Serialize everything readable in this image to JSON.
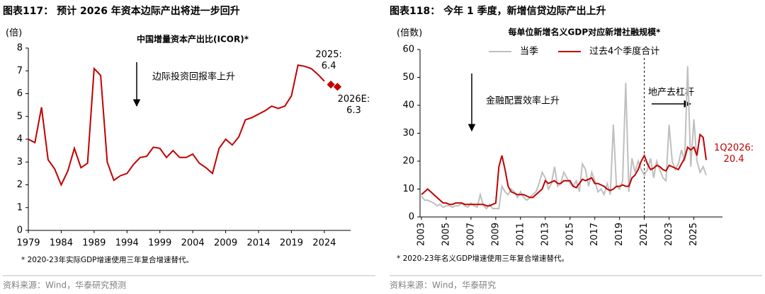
{
  "chart_data": [
    {
      "type": "line",
      "heading": "图表117：  预计 2026 年资本边际产出将进一步回升",
      "title": "中国增量资本产出比(ICOR)*",
      "ylabel": "(倍)",
      "annotations": [
        "边际投资回报率上升"
      ],
      "note": "* 2020-23年实际GDP增速使用三年复合增速替代。",
      "source": "资料来源：Wind，华泰研究预测",
      "xlim": [
        1979,
        2028
      ],
      "xticks": [
        1979,
        1984,
        1989,
        1994,
        1999,
        2004,
        2009,
        2014,
        2019,
        2024
      ],
      "ylim": [
        0,
        8
      ],
      "yticks": [
        0,
        1,
        2,
        3,
        4,
        5,
        6,
        7,
        8
      ],
      "series": [
        {
          "color": "#c00000",
          "x": [
            1979,
            1980,
            1981,
            1982,
            1983,
            1984,
            1985,
            1986,
            1987,
            1988,
            1989,
            1990,
            1991,
            1992,
            1993,
            1994,
            1995,
            1996,
            1997,
            1998,
            1999,
            2000,
            2001,
            2002,
            2003,
            2004,
            2005,
            2006,
            2007,
            2008,
            2009,
            2010,
            2011,
            2012,
            2013,
            2014,
            2015,
            2016,
            2017,
            2018,
            2019,
            2020,
            2021,
            2022,
            2023,
            2024
          ],
          "values": [
            4.0,
            3.85,
            5.4,
            3.1,
            2.7,
            2.0,
            2.6,
            3.6,
            2.75,
            2.95,
            7.1,
            6.8,
            3.0,
            2.2,
            2.4,
            2.5,
            2.9,
            3.2,
            3.25,
            3.65,
            3.6,
            3.2,
            3.5,
            3.2,
            3.2,
            3.35,
            2.95,
            2.75,
            2.5,
            3.6,
            4.0,
            3.75,
            4.1,
            4.85,
            4.95,
            5.1,
            5.25,
            5.45,
            5.35,
            5.45,
            5.9,
            7.25,
            7.2,
            7.1,
            6.85,
            6.55
          ]
        },
        {
          "color": "#c00000",
          "marker": "diamond",
          "x": [
            2025,
            2026
          ],
          "values": [
            6.4,
            6.3
          ],
          "value_labels": [
            "2025:\n6.4",
            "2026E:\n6.3"
          ]
        }
      ]
    },
    {
      "type": "line",
      "heading": "图表118：  今年 1 季度，新增信贷边际产出上升",
      "title": "每单位新增名义GDP对应新增社融规模*",
      "ylabel": "(倍数)",
      "annotations": [
        "金融配置效率上升",
        "地产去杠杆"
      ],
      "note": "* 2020-23年名义GDP增速使用三年复合增速替代。",
      "source": "资料来源：Wind，华泰研究",
      "legend": "top",
      "ylim": [
        0,
        60
      ],
      "yticks": [
        0,
        10,
        20,
        30,
        40,
        50,
        60
      ],
      "categories": [
        "2003",
        null,
        null,
        null,
        null,
        null,
        null,
        null,
        "2005",
        null,
        null,
        null,
        null,
        null,
        null,
        null,
        "2007",
        null,
        null,
        null,
        null,
        null,
        null,
        null,
        "2009",
        null,
        null,
        null,
        null,
        null,
        null,
        null,
        "2011",
        null,
        null,
        null,
        null,
        null,
        null,
        null,
        "2013",
        null,
        null,
        null,
        null,
        null,
        null,
        null,
        "2015",
        null,
        null,
        null,
        null,
        null,
        null,
        null,
        "2017",
        null,
        null,
        null,
        null,
        null,
        null,
        null,
        "2019",
        null,
        null,
        null,
        null,
        null,
        null,
        null,
        "2021",
        null,
        null,
        null,
        null,
        null,
        null,
        null,
        "2023",
        null,
        null,
        null,
        null,
        null,
        null,
        null,
        "2025",
        null,
        null,
        null,
        null
      ],
      "series": [
        {
          "name": "当季",
          "color": "#bfbfbf",
          "values": [
            7.5,
            6,
            6,
            5.5,
            5,
            4,
            4.5,
            3.5,
            4,
            4,
            3.5,
            4,
            4,
            5,
            4,
            3.5,
            5,
            4,
            3.5,
            8,
            4,
            3,
            4.5,
            3,
            3,
            3,
            11,
            9,
            8,
            10,
            9,
            7,
            9,
            7,
            6,
            7,
            8,
            9,
            12,
            16,
            14,
            10,
            12,
            18,
            11,
            12,
            16,
            14,
            12,
            11,
            13,
            9,
            19,
            17,
            11,
            16,
            13,
            9,
            10,
            8,
            12,
            8,
            33,
            11,
            10,
            13,
            48,
            9,
            21,
            16,
            20,
            17,
            15,
            17,
            21,
            14,
            20,
            17,
            14,
            13,
            33,
            20,
            17,
            19,
            24,
            20,
            54,
            18,
            35,
            20,
            16,
            18,
            15
          ]
        },
        {
          "name": "过去4个季度合计",
          "color": "#c00000",
          "values": [
            8,
            9,
            10,
            9,
            8,
            7,
            6,
            5,
            5,
            4.5,
            4.5,
            5,
            5,
            5,
            4.5,
            4.5,
            4.5,
            4.5,
            4.5,
            4.5,
            4.5,
            4,
            4,
            4.5,
            5,
            18,
            22,
            17,
            11,
            9,
            8.5,
            8,
            8,
            8,
            7.5,
            7,
            7,
            8,
            9,
            10,
            13,
            12,
            12.5,
            13,
            12,
            12,
            13,
            13,
            13,
            11,
            10.5,
            12,
            13.5,
            13,
            13.5,
            14,
            12,
            12,
            11.5,
            11,
            10,
            9.5,
            10,
            11,
            11,
            11.5,
            11,
            11,
            14,
            15,
            17,
            20,
            22,
            19,
            17,
            17.5,
            18.5,
            18,
            17,
            16.5,
            18.5,
            18,
            17.5,
            17,
            19,
            21,
            25,
            24,
            25,
            22,
            29.5,
            28.5,
            20.4
          ],
          "value_labels": [
            null,
            null,
            null,
            null,
            null,
            null,
            null,
            null,
            null,
            null,
            null,
            null,
            null,
            null,
            null,
            null,
            null,
            null,
            null,
            null,
            null,
            null,
            null,
            null,
            null,
            null,
            null,
            null,
            null,
            null,
            null,
            null,
            null,
            null,
            null,
            null,
            null,
            null,
            null,
            null,
            null,
            null,
            null,
            null,
            null,
            null,
            null,
            null,
            null,
            null,
            null,
            null,
            null,
            null,
            null,
            null,
            null,
            null,
            null,
            null,
            null,
            null,
            null,
            null,
            null,
            null,
            null,
            null,
            null,
            null,
            null,
            null,
            null,
            null,
            null,
            null,
            null,
            null,
            null,
            null,
            null,
            null,
            null,
            null,
            null,
            null,
            null,
            null,
            null,
            null,
            null,
            null,
            "1Q2026:\n20.4"
          ]
        }
      ]
    }
  ]
}
